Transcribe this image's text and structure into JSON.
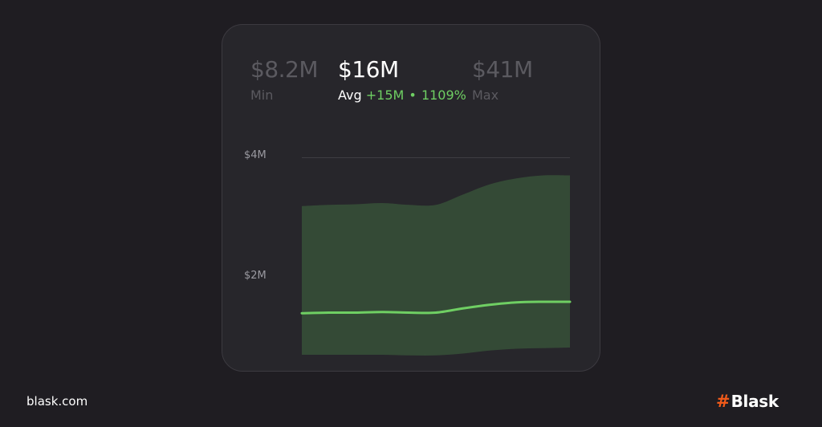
{
  "stats": {
    "min": {
      "value": "$8.2M",
      "label": "Min"
    },
    "avg": {
      "value": "$16M",
      "label": "Avg",
      "change": "+15M",
      "separator": "•",
      "percent": "1109%"
    },
    "max": {
      "value": "$41M",
      "label": "Max"
    }
  },
  "footer": {
    "domain": "blask.com",
    "brand_mark": "#",
    "brand_name": "Blask"
  },
  "colors": {
    "background": "#1f1d22",
    "card": "#27262b",
    "line": "#6fcf63",
    "band": "#344a36",
    "grid": "#3e3d43"
  },
  "chart_data": {
    "type": "area",
    "x": [
      0,
      1,
      2,
      3,
      4,
      5,
      6,
      7,
      8,
      9,
      10
    ],
    "yticks": [
      {
        "value": 4,
        "label": "$4M"
      },
      {
        "value": 2,
        "label": "$2M"
      }
    ],
    "ylim": [
      0.6,
      4.2
    ],
    "grid": true,
    "series": [
      {
        "role": "upper",
        "values": [
          3.19,
          3.21,
          3.22,
          3.24,
          3.21,
          3.21,
          3.38,
          3.55,
          3.65,
          3.7,
          3.7
        ]
      },
      {
        "role": "average",
        "values": [
          1.41,
          1.42,
          1.42,
          1.43,
          1.42,
          1.42,
          1.49,
          1.55,
          1.59,
          1.6,
          1.6
        ]
      },
      {
        "role": "lower",
        "values": [
          0.72,
          0.72,
          0.72,
          0.72,
          0.71,
          0.71,
          0.74,
          0.79,
          0.82,
          0.83,
          0.84
        ]
      }
    ]
  }
}
